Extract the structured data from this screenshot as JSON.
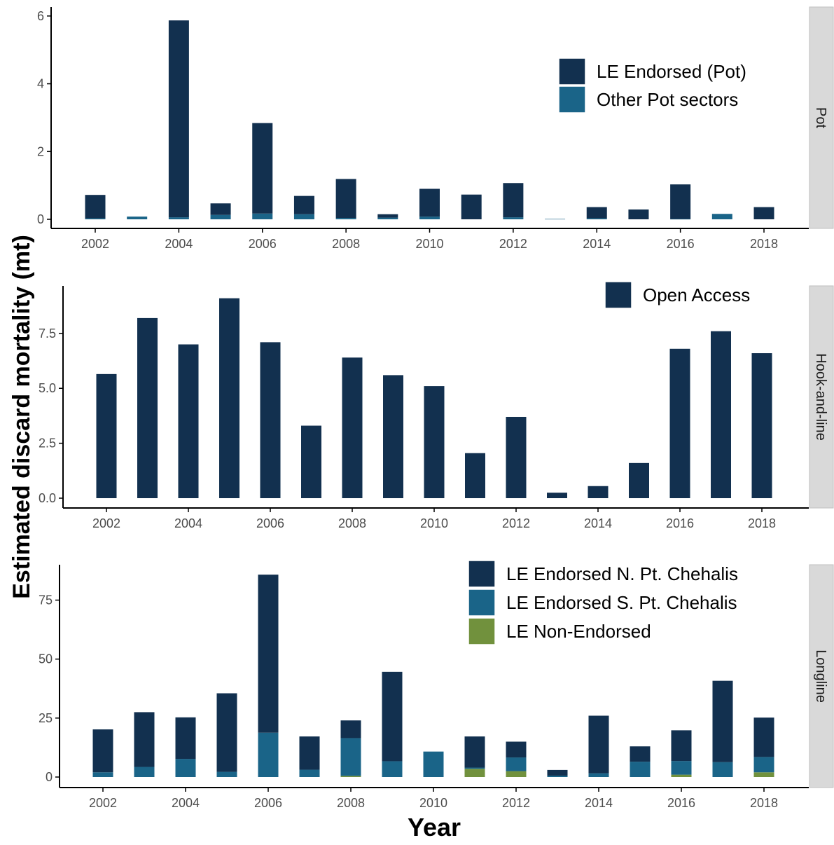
{
  "labels": {
    "ylabel": "Estimated discard mortality (mt)",
    "xlabel": "Year"
  },
  "colors": {
    "dark_navy": "#12304f",
    "teal_blue": "#1a6488",
    "olive_green": "#71913d",
    "strip_bg": "#d9d9d9",
    "axis": "#000000",
    "tick_text": "#4d4d4d"
  },
  "chart_data": [
    {
      "type": "bar",
      "stacked": true,
      "facet": "Pot",
      "x": [
        2002,
        2003,
        2004,
        2005,
        2006,
        2007,
        2008,
        2009,
        2010,
        2011,
        2012,
        2013,
        2014,
        2015,
        2016,
        2017,
        2018
      ],
      "xticks": [
        "2002",
        "2004",
        "2006",
        "2008",
        "2010",
        "2012",
        "2014",
        "2016",
        "2018"
      ],
      "ylim": [
        0,
        6.1
      ],
      "yticks": [
        "0",
        "2",
        "4",
        "6"
      ],
      "legend_position": "top-right",
      "series": [
        {
          "name": "Other Pot sectors",
          "color": "#1a6488",
          "values": [
            0.03,
            0.08,
            0.06,
            0.13,
            0.17,
            0.15,
            0.04,
            0.05,
            0.08,
            0.0,
            0.06,
            0.01,
            0.03,
            0.0,
            0.01,
            0.16,
            0.0
          ]
        },
        {
          "name": "LE Endorsed (Pot)",
          "color": "#12304f",
          "values": [
            0.69,
            0.0,
            5.81,
            0.34,
            2.67,
            0.54,
            1.15,
            0.1,
            0.82,
            0.73,
            1.01,
            0.0,
            0.33,
            0.29,
            1.02,
            0.0,
            0.36
          ]
        }
      ]
    },
    {
      "type": "bar",
      "stacked": true,
      "facet": "Hook-and-line",
      "x": [
        2002,
        2003,
        2004,
        2005,
        2006,
        2007,
        2008,
        2009,
        2010,
        2011,
        2012,
        2013,
        2014,
        2015,
        2016,
        2017,
        2018
      ],
      "xticks": [
        "2002",
        "2004",
        "2006",
        "2008",
        "2010",
        "2012",
        "2014",
        "2016",
        "2018"
      ],
      "ylim": [
        0,
        9.6
      ],
      "yticks": [
        "0.0",
        "2.5",
        "5.0",
        "7.5"
      ],
      "legend_position": "top-right",
      "series": [
        {
          "name": "Open Access",
          "color": "#12304f",
          "values": [
            5.65,
            8.2,
            7.0,
            9.1,
            7.1,
            3.3,
            6.4,
            5.6,
            5.1,
            2.05,
            3.7,
            0.25,
            0.55,
            1.6,
            6.8,
            7.6,
            6.6
          ]
        }
      ]
    },
    {
      "type": "bar",
      "stacked": true,
      "facet": "Longline",
      "x": [
        2002,
        2003,
        2004,
        2005,
        2006,
        2007,
        2008,
        2009,
        2010,
        2011,
        2012,
        2013,
        2014,
        2015,
        2016,
        2017,
        2018
      ],
      "xticks": [
        "2002",
        "2004",
        "2006",
        "2008",
        "2010",
        "2012",
        "2014",
        "2016",
        "2018"
      ],
      "ylim": [
        0,
        90
      ],
      "yticks": [
        "0",
        "25",
        "50",
        "75"
      ],
      "legend_position": "top-right",
      "series": [
        {
          "name": "LE Non-Endorsed",
          "color": "#71913d",
          "values": [
            0,
            0,
            0,
            0,
            0,
            0,
            0.5,
            0,
            0,
            3.5,
            2.5,
            0,
            0,
            0,
            1,
            0,
            2
          ]
        },
        {
          "name": "LE Endorsed S. Pt. Chehalis",
          "color": "#1a6488",
          "values": [
            2,
            4.3,
            7.7,
            2.2,
            18.8,
            3.1,
            16,
            6.7,
            10.8,
            0.5,
            5.8,
            0.6,
            1.6,
            6.5,
            5.8,
            6.3,
            6.5
          ]
        },
        {
          "name": "LE Endorsed N. Pt. Chehalis",
          "color": "#12304f",
          "values": [
            18.2,
            23.2,
            17.6,
            33.3,
            67,
            14.1,
            7.5,
            37.9,
            0,
            13.2,
            6.7,
            2.4,
            24.4,
            6.5,
            13,
            34.5,
            16.7
          ]
        }
      ]
    }
  ]
}
